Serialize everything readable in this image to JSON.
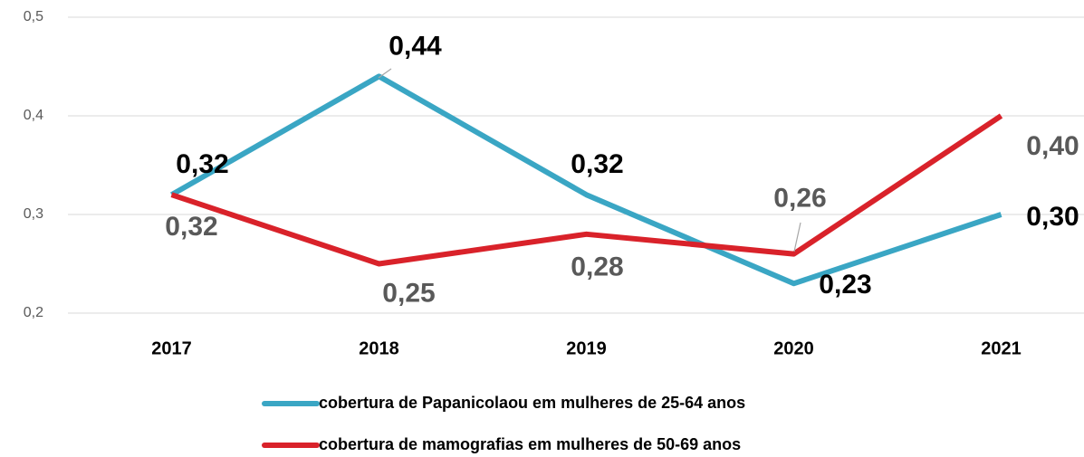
{
  "chart_data": {
    "type": "line",
    "categories": [
      "2017",
      "2018",
      "2019",
      "2020",
      "2021"
    ],
    "series": [
      {
        "name": "cobertura de Papanicolaou em mulheres de 25-64 anos",
        "color": "#3aa6c4",
        "values": [
          0.32,
          0.44,
          0.32,
          0.23,
          0.3
        ],
        "value_labels": [
          "0,32",
          "0,44",
          "0,32",
          "0,23",
          "0,30"
        ]
      },
      {
        "name": "cobertura de mamografias em mulheres de 50-69 anos",
        "color": "#d9222a",
        "values": [
          0.32,
          0.25,
          0.28,
          0.26,
          0.4
        ],
        "value_labels": [
          "0,32",
          "0,25",
          "0,28",
          "0,26",
          "0,40"
        ]
      }
    ],
    "ylim": [
      0.2,
      0.5
    ],
    "yticks": [
      {
        "value": 0.2,
        "label": "0,2"
      },
      {
        "value": 0.3,
        "label": "0,3"
      },
      {
        "value": 0.4,
        "label": "0,4"
      },
      {
        "value": 0.5,
        "label": "0,5"
      }
    ],
    "grid": true,
    "legend": "bottom"
  }
}
